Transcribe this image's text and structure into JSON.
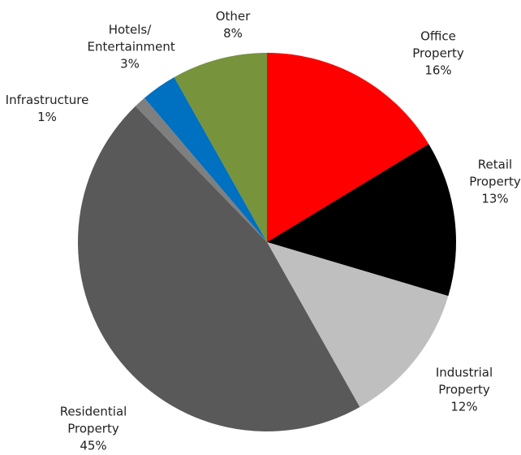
{
  "chart_data": {
    "type": "pie",
    "categories": [
      "Office Property",
      "Retail Property",
      "Industrial Property",
      "Residential Property",
      "Infrastructure",
      "Hotels/ Entertainment",
      "Other"
    ],
    "values": [
      16,
      13,
      12,
      45,
      1,
      3,
      8
    ],
    "value_labels": [
      "16%",
      "13%",
      "12%",
      "45%",
      "1%",
      "3%",
      "8%"
    ],
    "colors": [
      "#ff0000",
      "#000000",
      "#bfbfbf",
      "#595959",
      "#7f7f7f",
      "#0070c0",
      "#77933c"
    ]
  }
}
